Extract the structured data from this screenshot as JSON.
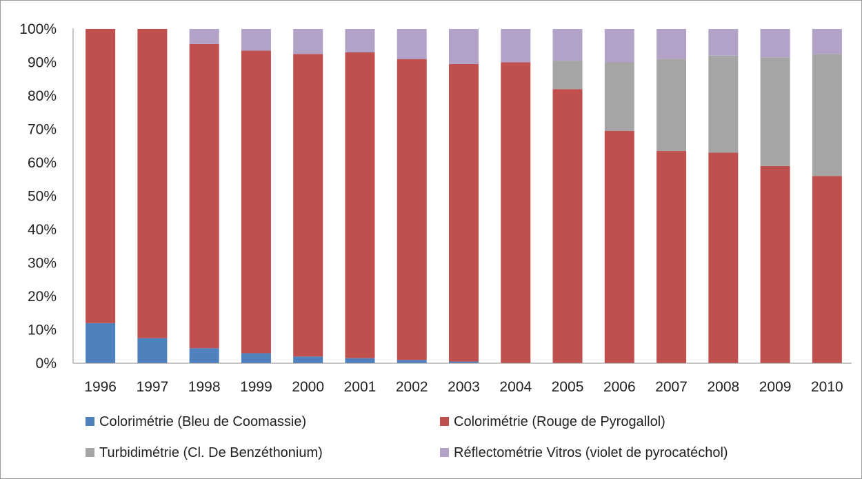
{
  "chart_data": {
    "type": "bar",
    "stacked": true,
    "percent": true,
    "title": "",
    "xlabel": "",
    "ylabel": "",
    "ylim": [
      0,
      100
    ],
    "yticks": [
      "0%",
      "10%",
      "20%",
      "30%",
      "40%",
      "50%",
      "60%",
      "70%",
      "80%",
      "90%",
      "100%"
    ],
    "grid": false,
    "legend_position": "bottom",
    "categories": [
      "1996",
      "1997",
      "1998",
      "1999",
      "2000",
      "2001",
      "2002",
      "2003",
      "2004",
      "2005",
      "2006",
      "2007",
      "2008",
      "2009",
      "2010"
    ],
    "series": [
      {
        "name": "Colorimétrie (Bleu de Coomassie)",
        "color": "#4f81bd",
        "values": [
          12,
          7.5,
          4.5,
          3,
          2,
          1.5,
          1,
          0.5,
          0,
          0,
          0,
          0,
          0,
          0,
          0
        ]
      },
      {
        "name": "Colorimétrie (Rouge de Pyrogallol)",
        "color": "#c0504d",
        "values": [
          88,
          92.5,
          91,
          90.5,
          90.5,
          91.5,
          90,
          89,
          90,
          82,
          69.5,
          63.5,
          63,
          59,
          56
        ]
      },
      {
        "name": "Turbidimétrie (Cl. De Benzéthonium)",
        "color": "#a5a5a5",
        "values": [
          0,
          0,
          0,
          0,
          0,
          0,
          0,
          0,
          0,
          8.5,
          20.5,
          27.5,
          29,
          32.5,
          36.5
        ]
      },
      {
        "name": "Réflectométrie Vitros (violet de pyrocatéchol)",
        "color": "#b3a2c7",
        "values": [
          0,
          0,
          4.5,
          6.5,
          7.5,
          7,
          9,
          10.5,
          10,
          9.5,
          10,
          9,
          8,
          8.5,
          7.5
        ]
      }
    ]
  }
}
